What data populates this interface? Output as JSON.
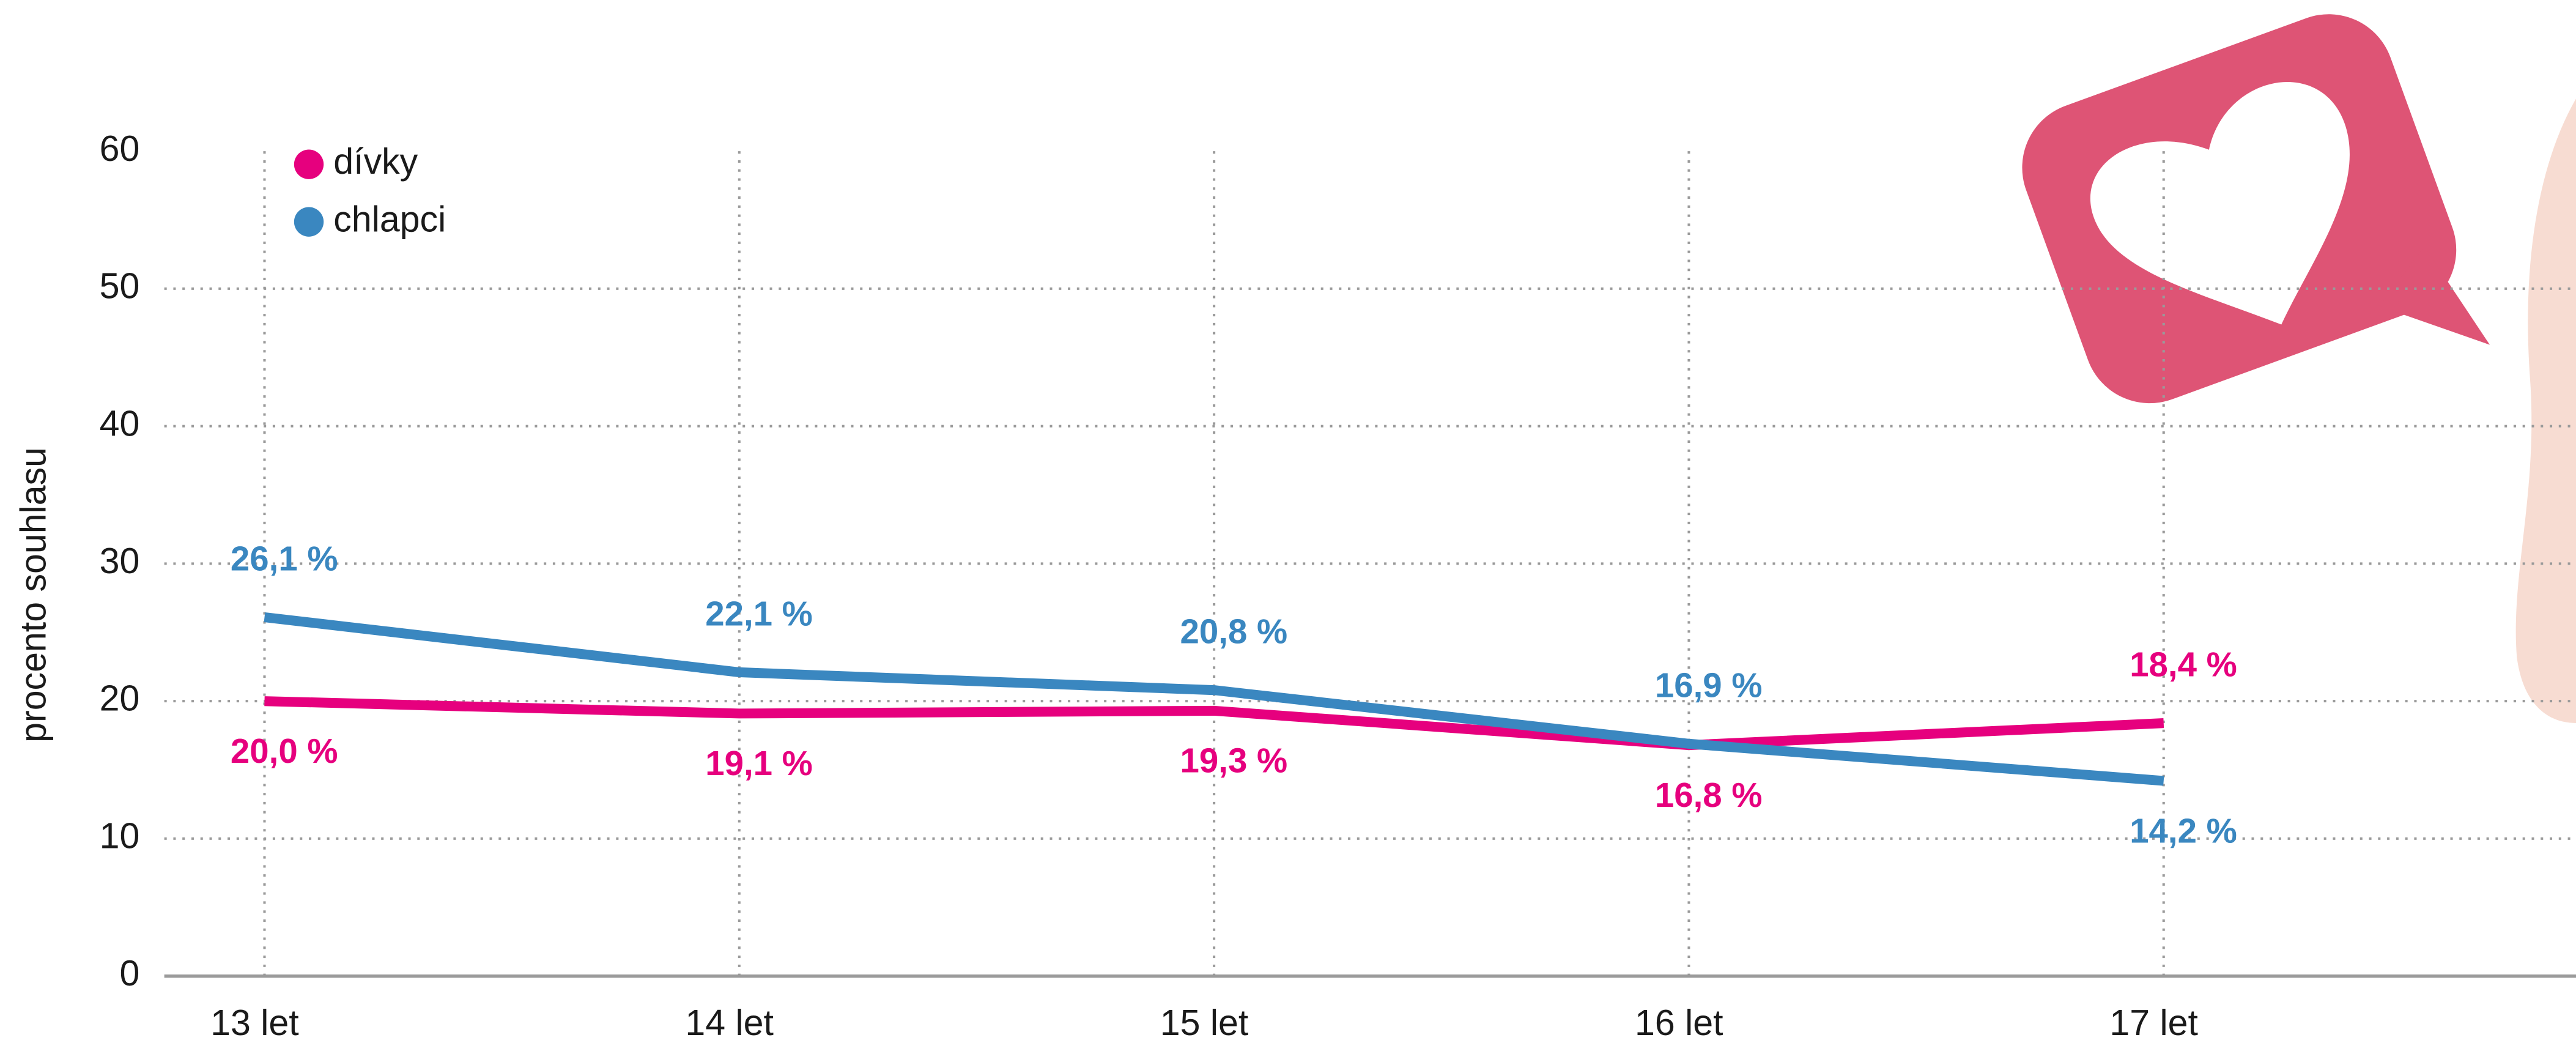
{
  "chart_data": {
    "type": "line",
    "y_axis_label": "procento souhlasu",
    "categories": [
      "13 let",
      "14 let",
      "15 let",
      "16 let",
      "17 let"
    ],
    "series": [
      {
        "name": "dívky",
        "color": "#e6007e",
        "values": [
          20.0,
          19.1,
          19.3,
          16.8,
          18.4
        ],
        "value_labels": [
          "20,0 %",
          "19,1 %",
          "19,3 %",
          "16,8 %",
          "18,4 %"
        ]
      },
      {
        "name": "chlapci",
        "color": "#3a87c0",
        "values": [
          26.1,
          22.1,
          20.8,
          16.9,
          14.2
        ],
        "value_labels": [
          "26,1 %",
          "22,1 %",
          "20,8 %",
          "16,9 %",
          "14,2 %"
        ]
      }
    ],
    "ylim": [
      0,
      60
    ],
    "yticks": [
      0,
      10,
      20,
      30,
      40,
      50,
      60
    ],
    "grid": true,
    "legend": "top-left"
  }
}
